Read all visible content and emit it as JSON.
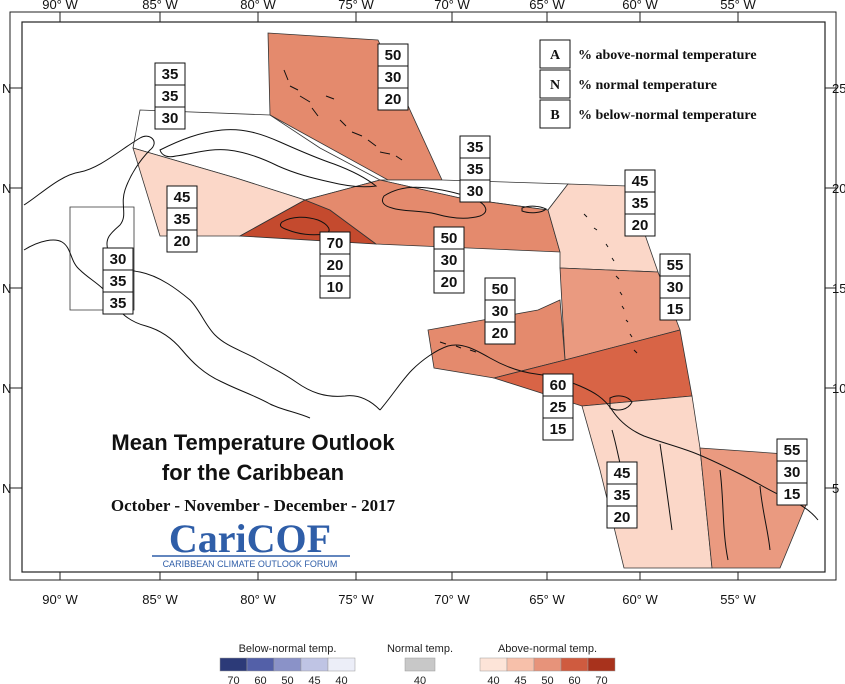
{
  "map": {
    "title_line1": "Mean Temperature Outlook",
    "title_line2": "for the Caribbean",
    "period": "October - November - December - 2017",
    "logo_text": "CariCOF",
    "logo_subtext": "CARIBBEAN CLIMATE OUTLOOK FORUM",
    "lon_labels": [
      "90° W",
      "85° W",
      "80° W",
      "75° W",
      "70° W",
      "65° W",
      "60° W",
      "55° W"
    ],
    "lat_labels_left": [
      "N",
      "N",
      "N",
      "N",
      "N"
    ],
    "lat_labels_right": [
      "25",
      "20",
      "15",
      "10",
      "5"
    ]
  },
  "legend": {
    "items": [
      {
        "key": "A",
        "label": "% above-normal temperature"
      },
      {
        "key": "N",
        "label": "% normal temperature"
      },
      {
        "key": "B",
        "label": "% below-normal temperature"
      }
    ]
  },
  "regions": [
    {
      "name": "bahamas-turks",
      "A": "50",
      "N": "30",
      "B": "20",
      "fill": "#e48a6d"
    },
    {
      "name": "north-cuba",
      "A": "35",
      "N": "35",
      "B": "30",
      "fill": "#ffffff"
    },
    {
      "name": "hispaniola-north",
      "A": "35",
      "N": "35",
      "B": "30",
      "fill": "#ffffff"
    },
    {
      "name": "west-cuba",
      "A": "45",
      "N": "35",
      "B": "20",
      "fill": "#fbd7c8"
    },
    {
      "name": "belize",
      "A": "30",
      "N": "35",
      "B": "35",
      "fill": "#ffffff"
    },
    {
      "name": "jamaica",
      "A": "70",
      "N": "20",
      "B": "10",
      "fill": "#c44a2e"
    },
    {
      "name": "hispaniola-south",
      "A": "50",
      "N": "30",
      "B": "20",
      "fill": "#e48a6d"
    },
    {
      "name": "leeward-islands",
      "A": "45",
      "N": "35",
      "B": "20",
      "fill": "#fbd7c8"
    },
    {
      "name": "windward-islands",
      "A": "55",
      "N": "30",
      "B": "15",
      "fill": "#ea9a80"
    },
    {
      "name": "abc-islands",
      "A": "50",
      "N": "30",
      "B": "20",
      "fill": "#e48a6d"
    },
    {
      "name": "trinidad-tobago",
      "A": "60",
      "N": "25",
      "B": "15",
      "fill": "#d86446"
    },
    {
      "name": "guyana",
      "A": "45",
      "N": "35",
      "B": "20",
      "fill": "#fbd7c8"
    },
    {
      "name": "suriname-guiana",
      "A": "55",
      "N": "30",
      "B": "15",
      "fill": "#ea9a80"
    }
  ],
  "colorbar": {
    "below": {
      "title": "Below-normal temp.",
      "ticks": [
        "70",
        "60",
        "50",
        "45",
        "40"
      ],
      "colors": [
        "#2c3a78",
        "#5360a8",
        "#8a92c8",
        "#bfc4e4",
        "#eceef8"
      ]
    },
    "normal": {
      "title": "Normal temp.",
      "ticks": [
        "40"
      ],
      "colors": [
        "#c8c8c8"
      ]
    },
    "above": {
      "title": "Above-normal temp.",
      "ticks": [
        "40",
        "45",
        "50",
        "60",
        "70"
      ],
      "colors": [
        "#fde4d8",
        "#f7c0aa",
        "#e7937a",
        "#cf5b3f",
        "#a8321c"
      ]
    }
  }
}
